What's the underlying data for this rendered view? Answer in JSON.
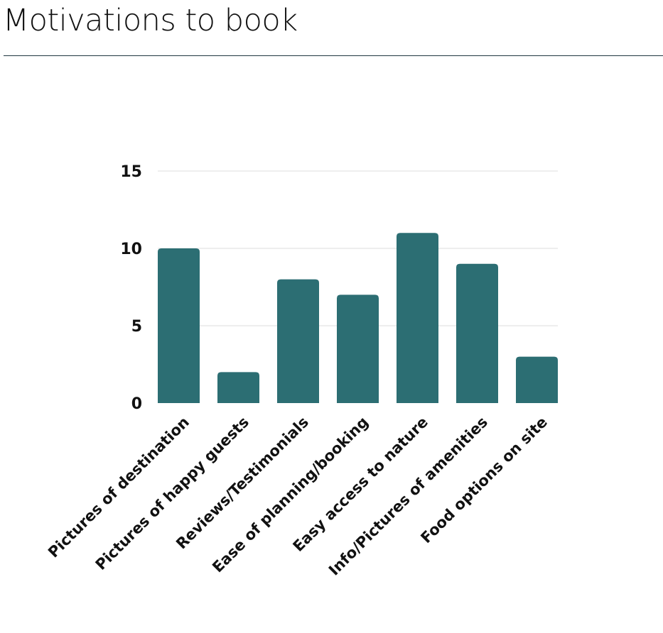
{
  "header": {
    "title": "Motivations to book"
  },
  "style": {
    "bar_color": "#2c6e73",
    "grid_color": "#dcdcdc",
    "rule_color": "#1f3640"
  },
  "chart_data": {
    "type": "bar",
    "title": "",
    "xlabel": "",
    "ylabel": "",
    "ylim": [
      0,
      15
    ],
    "yticks": [
      0,
      5,
      10,
      15
    ],
    "grid": true,
    "categories": [
      "Pictures of destination",
      "Pictures of happy guests",
      "Reviews/Testimonials",
      "Ease of planning/booking",
      "Easy access to nature",
      "Info/Pictures of amenities",
      "Food options on site"
    ],
    "values": [
      10,
      2,
      8,
      7,
      11,
      9,
      3
    ]
  }
}
